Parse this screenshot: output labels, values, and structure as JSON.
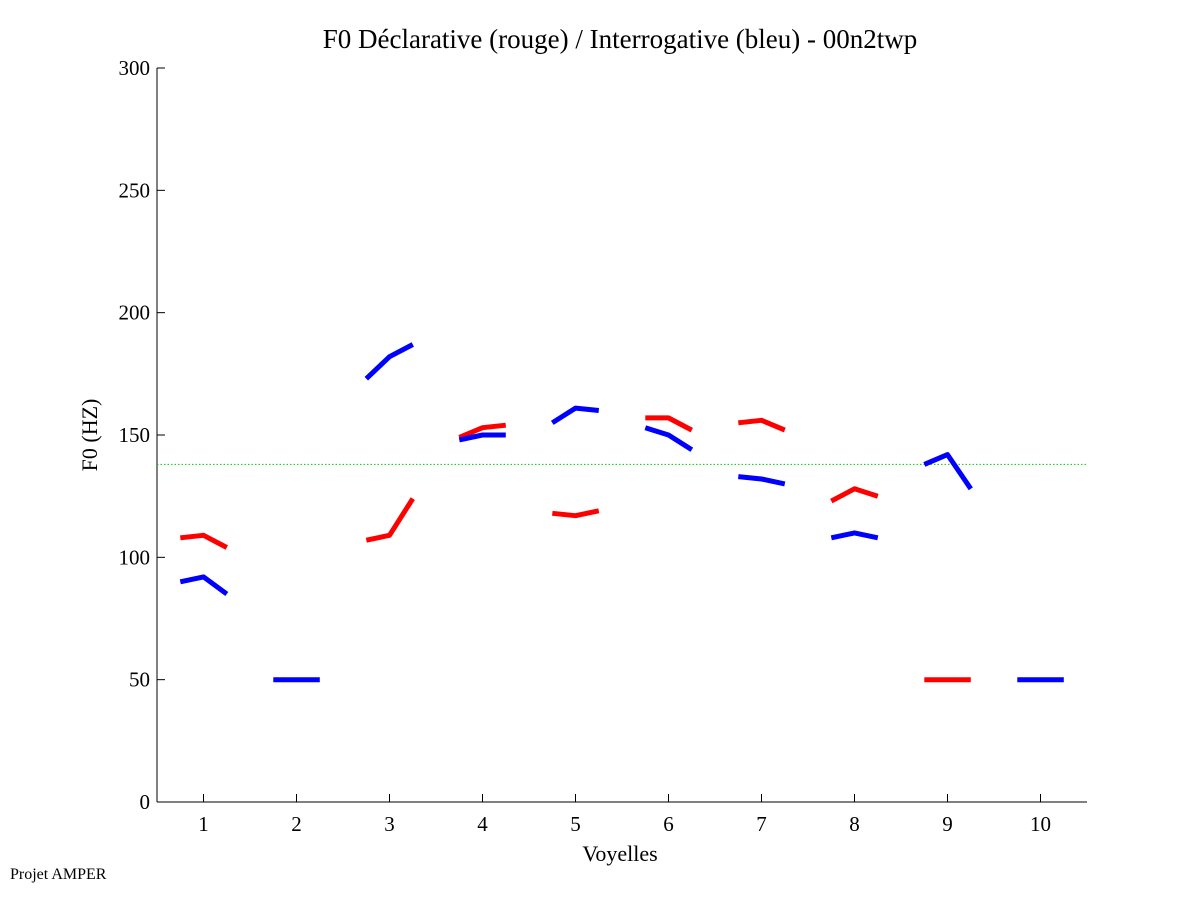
{
  "chart_data": {
    "type": "line",
    "title": "F0 Déclarative (rouge) / Interrogative (bleu) - 00n2twp",
    "xlabel": "Voyelles",
    "ylabel": "F0 (HZ)",
    "xlim": [
      0.5,
      10.5
    ],
    "ylim": [
      0,
      300
    ],
    "x_ticks": [
      1,
      2,
      3,
      4,
      5,
      6,
      7,
      8,
      9,
      10
    ],
    "y_ticks": [
      0,
      50,
      100,
      150,
      200,
      250,
      300
    ],
    "reference_line": {
      "y": 138,
      "color": "#00cc00",
      "style": "dotted"
    },
    "series": [
      {
        "name": "Déclarative",
        "color": "#ff0000",
        "segments": [
          {
            "vowel": 1,
            "points": [
              [
                0.75,
                108
              ],
              [
                1.0,
                109
              ],
              [
                1.25,
                104
              ]
            ]
          },
          {
            "vowel": 3,
            "points": [
              [
                2.75,
                107
              ],
              [
                3.0,
                109
              ],
              [
                3.25,
                124
              ]
            ]
          },
          {
            "vowel": 4,
            "points": [
              [
                3.75,
                149
              ],
              [
                4.0,
                153
              ],
              [
                4.25,
                154
              ]
            ]
          },
          {
            "vowel": 5,
            "points": [
              [
                4.75,
                118
              ],
              [
                5.0,
                117
              ],
              [
                5.25,
                119
              ]
            ]
          },
          {
            "vowel": 6,
            "points": [
              [
                5.75,
                157
              ],
              [
                6.0,
                157
              ],
              [
                6.25,
                152
              ]
            ]
          },
          {
            "vowel": 7,
            "points": [
              [
                6.75,
                155
              ],
              [
                7.0,
                156
              ],
              [
                7.25,
                152
              ]
            ]
          },
          {
            "vowel": 8,
            "points": [
              [
                7.75,
                123
              ],
              [
                8.0,
                128
              ],
              [
                8.25,
                125
              ]
            ]
          },
          {
            "vowel": 9,
            "points": [
              [
                8.75,
                50
              ],
              [
                9.0,
                50
              ],
              [
                9.25,
                50
              ]
            ]
          }
        ]
      },
      {
        "name": "Interrogative",
        "color": "#0000ff",
        "segments": [
          {
            "vowel": 1,
            "points": [
              [
                0.75,
                90
              ],
              [
                1.0,
                92
              ],
              [
                1.25,
                85
              ]
            ]
          },
          {
            "vowel": 2,
            "points": [
              [
                1.75,
                50
              ],
              [
                2.0,
                50
              ],
              [
                2.25,
                50
              ]
            ]
          },
          {
            "vowel": 3,
            "points": [
              [
                2.75,
                173
              ],
              [
                3.0,
                182
              ],
              [
                3.25,
                187
              ]
            ]
          },
          {
            "vowel": 4,
            "points": [
              [
                3.75,
                148
              ],
              [
                4.0,
                150
              ],
              [
                4.25,
                150
              ]
            ]
          },
          {
            "vowel": 5,
            "points": [
              [
                4.75,
                155
              ],
              [
                5.0,
                161
              ],
              [
                5.25,
                160
              ]
            ]
          },
          {
            "vowel": 6,
            "points": [
              [
                5.75,
                153
              ],
              [
                6.0,
                150
              ],
              [
                6.25,
                144
              ]
            ]
          },
          {
            "vowel": 7,
            "points": [
              [
                6.75,
                133
              ],
              [
                7.0,
                132
              ],
              [
                7.25,
                130
              ]
            ]
          },
          {
            "vowel": 8,
            "points": [
              [
                7.75,
                108
              ],
              [
                8.0,
                110
              ],
              [
                8.25,
                108
              ]
            ]
          },
          {
            "vowel": 9,
            "points": [
              [
                8.75,
                138
              ],
              [
                9.0,
                142
              ],
              [
                9.25,
                128
              ]
            ]
          },
          {
            "vowel": 10,
            "points": [
              [
                9.75,
                50
              ],
              [
                10.0,
                50
              ],
              [
                10.25,
                50
              ]
            ]
          }
        ]
      }
    ]
  },
  "footer": "Projet AMPER"
}
